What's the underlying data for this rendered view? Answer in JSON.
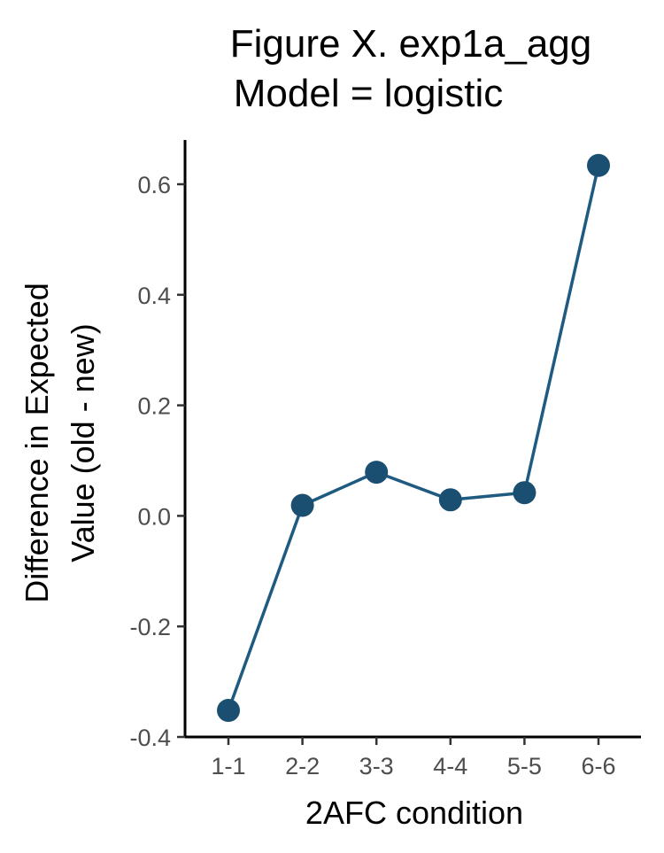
{
  "chart_data": {
    "type": "line",
    "title_lines": [
      "Figure X. exp1a_agg",
      "Model = logistic"
    ],
    "xlabel": "2AFC condition",
    "ylabel_lines": [
      "Difference in Expected",
      "Value (old - new)"
    ],
    "categories": [
      "1-1",
      "2-2",
      "3-3",
      "4-4",
      "5-5",
      "6-6"
    ],
    "values": [
      -0.352,
      0.019,
      0.079,
      0.029,
      0.042,
      0.634
    ],
    "ylim": [
      -0.4,
      0.68
    ],
    "yticks": [
      -0.4,
      -0.2,
      0.0,
      0.2,
      0.4,
      0.6
    ],
    "ytick_labels": [
      "-0.4",
      "-0.2",
      "0.0",
      "0.2",
      "0.4",
      "0.6"
    ],
    "grid": false,
    "legend": "none",
    "series_color": "#1f5a80",
    "point_color": "#1b4f72"
  }
}
